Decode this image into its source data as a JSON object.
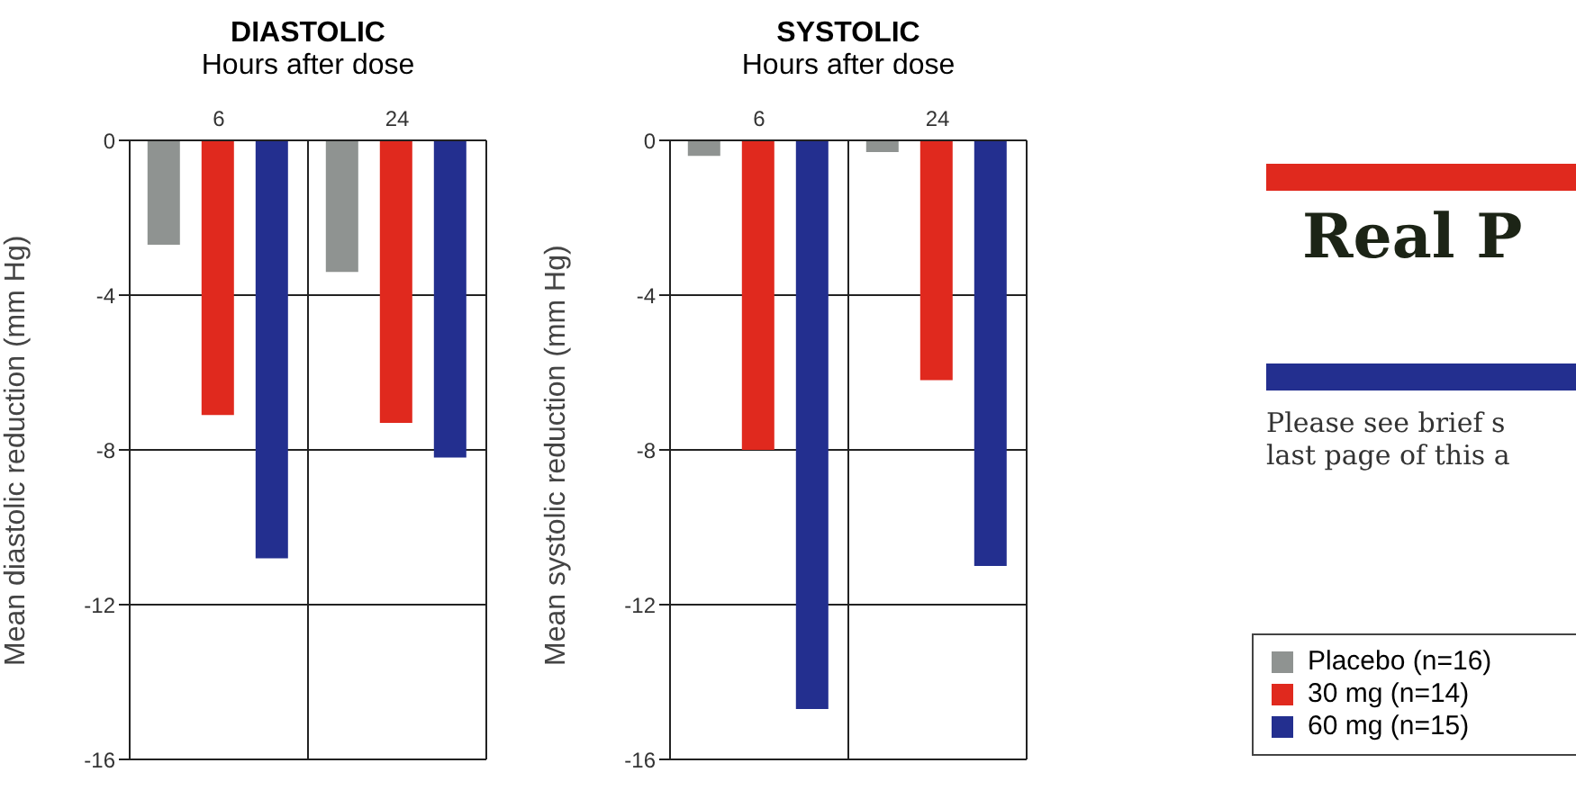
{
  "chart_data": [
    {
      "type": "bar",
      "title": "DIASTOLIC",
      "subtitle": "Hours after dose",
      "ylabel": "Mean diastolic reduction (mm Hg)",
      "categories": [
        "6",
        "24"
      ],
      "series": [
        {
          "color": "#8f9391",
          "values": [
            -2.7,
            -3.4
          ]
        },
        {
          "color": "#e0291e",
          "values": [
            -7.1,
            -7.3
          ]
        },
        {
          "color": "#232f8f",
          "values": [
            -10.8,
            -8.2
          ]
        }
      ],
      "ylim": [
        -16,
        0
      ],
      "yticks": [
        -16,
        -12,
        -8,
        -4,
        0
      ],
      "grid": true,
      "legend": false
    },
    {
      "type": "bar",
      "title": "SYSTOLIC",
      "subtitle": "Hours after dose",
      "ylabel": "Mean systolic reduction (mm Hg)",
      "categories": [
        "6",
        "24"
      ],
      "series": [
        {
          "name": "Placebo (n=16)",
          "color": "#8f9391",
          "values": [
            -0.4,
            -0.3
          ]
        },
        {
          "name": "30 mg (n=14)",
          "color": "#e0291e",
          "values": [
            -8.0,
            -6.2
          ]
        },
        {
          "name": "60 mg (n=15)",
          "color": "#232f8f",
          "values": [
            -14.7,
            -11.0
          ]
        }
      ],
      "ylim": [
        -16,
        0
      ],
      "yticks": [
        -16,
        -12,
        -8,
        -4,
        0
      ],
      "grid": true,
      "legend": "bottom right"
    },
    {
      "type": "other",
      "title": "Real P",
      "annotations": [
        "Please see brief s",
        "last page of this a"
      ]
    }
  ]
}
